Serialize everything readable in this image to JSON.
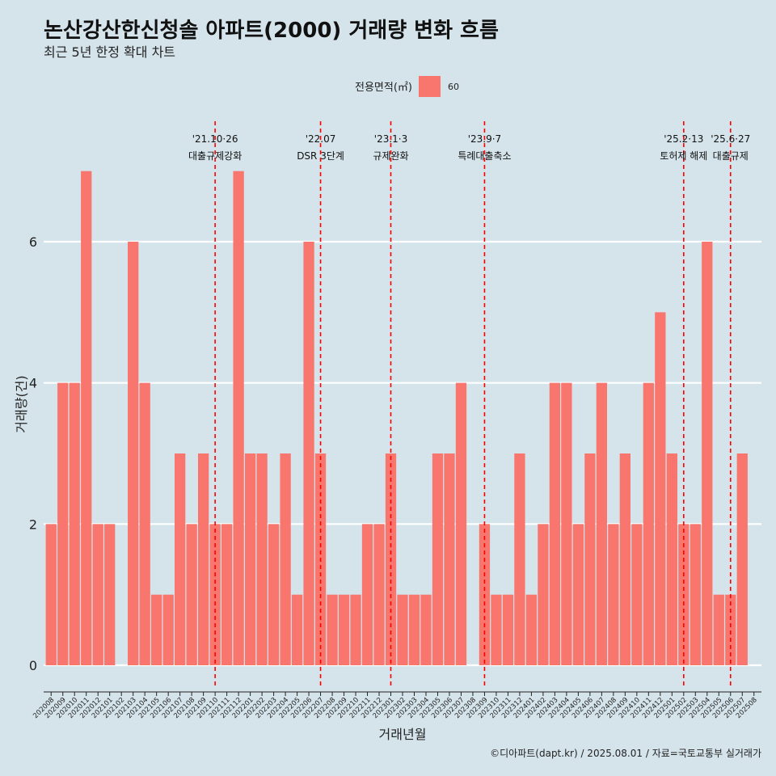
{
  "chart_data": {
    "type": "bar",
    "title": "논산강산한신청솔 아파트(2000) 거래량 변화 흐름",
    "subtitle": "최근 5년 한정 확대 차트",
    "xlabel": "거래년월",
    "ylabel": "거래량(건)",
    "legend": {
      "title": "전용면적(㎡)",
      "placement": "top-center",
      "entries": [
        {
          "name": "60",
          "color": "#f8766d"
        }
      ]
    },
    "ylim": [
      0,
      7.2
    ],
    "yticks": [
      0,
      2,
      4,
      6
    ],
    "grid": true,
    "categories": [
      "202008",
      "202009",
      "202010",
      "202011",
      "202012",
      "202101",
      "202102",
      "202103",
      "202104",
      "202105",
      "202106",
      "202107",
      "202108",
      "202109",
      "202110",
      "202111",
      "202112",
      "202201",
      "202202",
      "202203",
      "202204",
      "202205",
      "202206",
      "202207",
      "202208",
      "202209",
      "202210",
      "202211",
      "202212",
      "202301",
      "202302",
      "202303",
      "202304",
      "202305",
      "202306",
      "202307",
      "202308",
      "202309",
      "202310",
      "202311",
      "202312",
      "202401",
      "202402",
      "202403",
      "202404",
      "202405",
      "202406",
      "202407",
      "202408",
      "202409",
      "202410",
      "202411",
      "202412",
      "202501",
      "202502",
      "202503",
      "202504",
      "202505",
      "202506",
      "202507",
      "202508"
    ],
    "series": [
      {
        "name": "60",
        "color": "#f8766d",
        "values": [
          2,
          4,
          4,
          7,
          2,
          2,
          0,
          6,
          4,
          1,
          1,
          3,
          2,
          3,
          2,
          2,
          7,
          3,
          3,
          2,
          3,
          1,
          6,
          3,
          1,
          1,
          1,
          2,
          2,
          3,
          1,
          1,
          1,
          3,
          3,
          4,
          0,
          2,
          1,
          1,
          3,
          1,
          2,
          4,
          4,
          2,
          3,
          4,
          2,
          3,
          2,
          4,
          5,
          3,
          2,
          2,
          6,
          1,
          1,
          3,
          0
        ]
      }
    ],
    "events": [
      {
        "date": "'21.10·26",
        "label": "대출규제강화",
        "position": 14.5
      },
      {
        "date": "'22.07",
        "label": "DSR 3단계",
        "position": 23.5
      },
      {
        "date": "'23.1·3",
        "label": "규제완화",
        "position": 29.5
      },
      {
        "date": "'23.9·7",
        "label": "특례대출축소",
        "position": 37.5
      },
      {
        "date": "'25.2·13",
        "label": "토허제 해제",
        "position": 54.5
      },
      {
        "date": "'25.6·27",
        "label": "대출규제",
        "position": 58.5
      }
    ],
    "event_color": "#ff0000"
  },
  "caption": "©디아파트(dapt.kr) / 2025.08.01 / 자료=국토교통부 실거래가"
}
